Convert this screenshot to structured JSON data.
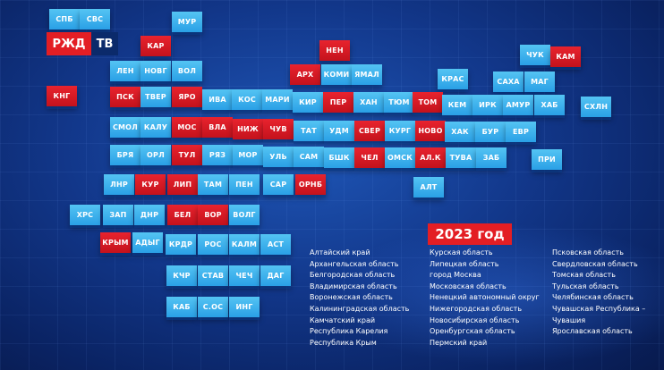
{
  "logo": {
    "part1": "РЖД",
    "part2": "ТВ"
  },
  "year_label": "2023 год",
  "tiles": [
    {
      "label": "СПБ",
      "red": false
    },
    {
      "label": "СВС",
      "red": false
    },
    {
      "label": "МУР",
      "red": false
    },
    {
      "label": "КАР",
      "red": true
    },
    {
      "label": "НЕН",
      "red": true
    },
    {
      "label": "ЧУК",
      "red": false
    },
    {
      "label": "КАМ",
      "red": true
    },
    {
      "label": "ЛЕН",
      "red": false
    },
    {
      "label": "НОВГ",
      "red": false
    },
    {
      "label": "ВОЛ",
      "red": false
    },
    {
      "label": "АРХ",
      "red": true
    },
    {
      "label": "КОМИ",
      "red": false
    },
    {
      "label": "ЯМАЛ",
      "red": false
    },
    {
      "label": "КРАС",
      "red": false
    },
    {
      "label": "САХА",
      "red": false
    },
    {
      "label": "МАГ",
      "red": false
    },
    {
      "label": "КНГ",
      "red": true
    },
    {
      "label": "ПСК",
      "red": true
    },
    {
      "label": "ТВЕР",
      "red": false
    },
    {
      "label": "ЯРО",
      "red": true
    },
    {
      "label": "ИВА",
      "red": false
    },
    {
      "label": "КОС",
      "red": false
    },
    {
      "label": "МАРИ",
      "red": false
    },
    {
      "label": "КИР",
      "red": false
    },
    {
      "label": "ПЕР",
      "red": true
    },
    {
      "label": "ХАН",
      "red": false
    },
    {
      "label": "ТЮМ",
      "red": false
    },
    {
      "label": "ТОМ",
      "red": true
    },
    {
      "label": "КЕМ",
      "red": false
    },
    {
      "label": "ИРК",
      "red": false
    },
    {
      "label": "АМУР",
      "red": false
    },
    {
      "label": "ХАБ",
      "red": false
    },
    {
      "label": "СХЛН",
      "red": false
    },
    {
      "label": "СМОЛ",
      "red": false
    },
    {
      "label": "КАЛУ",
      "red": false
    },
    {
      "label": "МОС",
      "red": true
    },
    {
      "label": "ВЛА",
      "red": true
    },
    {
      "label": "НИЖ",
      "red": true
    },
    {
      "label": "ЧУВ",
      "red": true
    },
    {
      "label": "ТАТ",
      "red": false
    },
    {
      "label": "УДМ",
      "red": false
    },
    {
      "label": "СВЕР",
      "red": true
    },
    {
      "label": "КУРГ",
      "red": false
    },
    {
      "label": "НОВО",
      "red": true
    },
    {
      "label": "ХАК",
      "red": false
    },
    {
      "label": "БУР",
      "red": false
    },
    {
      "label": "ЕВР",
      "red": false
    },
    {
      "label": "БРЯ",
      "red": false
    },
    {
      "label": "ОРЛ",
      "red": false
    },
    {
      "label": "ТУЛ",
      "red": true
    },
    {
      "label": "РЯЗ",
      "red": false
    },
    {
      "label": "МОР",
      "red": false
    },
    {
      "label": "УЛЬ",
      "red": false
    },
    {
      "label": "САМ",
      "red": false
    },
    {
      "label": "БШК",
      "red": false
    },
    {
      "label": "ЧЕЛ",
      "red": true
    },
    {
      "label": "ОМСК",
      "red": false
    },
    {
      "label": "АЛ.К",
      "red": true
    },
    {
      "label": "ТУВА",
      "red": false
    },
    {
      "label": "ЗАБ",
      "red": false
    },
    {
      "label": "ПРИ",
      "red": false
    },
    {
      "label": "ЛНР",
      "red": false
    },
    {
      "label": "КУР",
      "red": true
    },
    {
      "label": "ЛИП",
      "red": true
    },
    {
      "label": "ТАМ",
      "red": false
    },
    {
      "label": "ПЕН",
      "red": false
    },
    {
      "label": "САР",
      "red": false
    },
    {
      "label": "ОРНБ",
      "red": true
    },
    {
      "label": "АЛТ",
      "red": false
    },
    {
      "label": "ХРС",
      "red": false
    },
    {
      "label": "ЗАП",
      "red": false
    },
    {
      "label": "ДНР",
      "red": false
    },
    {
      "label": "БЕЛ",
      "red": true
    },
    {
      "label": "ВОР",
      "red": true
    },
    {
      "label": "ВОЛГ",
      "red": false
    },
    {
      "label": "КРЫМ",
      "red": true
    },
    {
      "label": "АДЫГ",
      "red": false
    },
    {
      "label": "КРДР",
      "red": false
    },
    {
      "label": "РОС",
      "red": false
    },
    {
      "label": "КАЛМ",
      "red": false
    },
    {
      "label": "АСТ",
      "red": false
    },
    {
      "label": "КЧР",
      "red": false
    },
    {
      "label": "СТАВ",
      "red": false
    },
    {
      "label": "ЧЕЧ",
      "red": false
    },
    {
      "label": "ДАГ",
      "red": false
    },
    {
      "label": "КАБ",
      "red": false
    },
    {
      "label": "С.ОС",
      "red": false
    },
    {
      "label": "ИНГ",
      "red": false
    }
  ],
  "list_col1": [
    "Алтайский край",
    "Архангельская область",
    "Белгородская область",
    "Владимирская область",
    "Воронежская область",
    "Калининградская область",
    "Камчатский край",
    "Республика Карелия",
    "Республика Крым"
  ],
  "list_col2": [
    "Курская область",
    "Липецкая область",
    "город Москва",
    "Московская область",
    "Ненецкий автономный округ",
    "Нижегородская область",
    "Новосибирская область",
    "Оренбургская область",
    "Пермский край"
  ],
  "list_col3": [
    "Псковская область",
    "Свердловская область",
    "Томская область",
    "Тульская область",
    "Челябинская область",
    "Чувашская Республика –",
    "Чувашия",
    "Ярославская область"
  ],
  "colors": {
    "tile_blue": "#2aa0e6",
    "tile_red": "#e31e24",
    "background": "#12378a"
  }
}
